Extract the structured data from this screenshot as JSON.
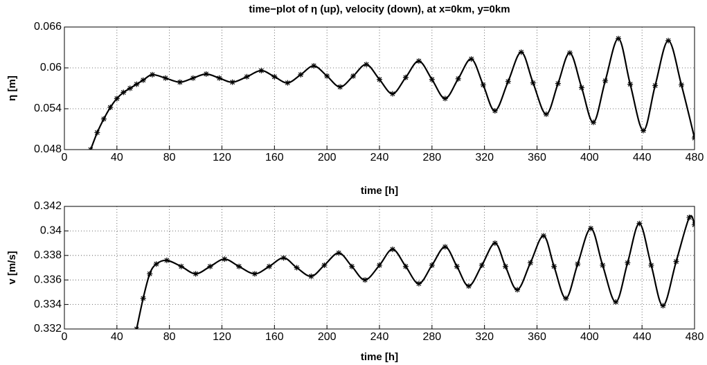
{
  "chart_data": [
    {
      "type": "line",
      "title": "time−plot of η (up), velocity (down), at x=0km, y=0km",
      "xlabel": "time [h]",
      "ylabel": "η [m]",
      "color": "#000000",
      "marker": "*",
      "grid": true,
      "xlim": [
        0,
        480
      ],
      "xticks": [
        0,
        40,
        80,
        120,
        160,
        200,
        240,
        280,
        320,
        360,
        400,
        440,
        480
      ],
      "ylim": [
        0.048,
        0.066
      ],
      "yticks": [
        0.048,
        0.054,
        0.06,
        0.066
      ],
      "x": [
        20,
        25,
        30,
        35,
        40,
        45,
        50,
        55,
        60,
        67,
        77,
        88,
        98,
        108,
        118,
        128,
        139,
        150,
        160,
        170,
        180,
        190,
        200,
        210,
        220,
        230,
        240,
        250,
        260,
        270,
        280,
        290,
        300,
        310,
        319,
        328,
        338,
        348,
        357,
        367,
        376,
        385,
        394,
        403,
        412,
        422,
        431,
        441,
        450,
        460,
        470,
        480
      ],
      "values": [
        0.048,
        0.0505,
        0.0525,
        0.0542,
        0.0555,
        0.0564,
        0.057,
        0.0576,
        0.0582,
        0.059,
        0.0585,
        0.0579,
        0.0585,
        0.0591,
        0.0585,
        0.0579,
        0.0587,
        0.0596,
        0.0587,
        0.0578,
        0.059,
        0.0603,
        0.0588,
        0.0572,
        0.0588,
        0.0605,
        0.0583,
        0.0562,
        0.0586,
        0.061,
        0.0583,
        0.0555,
        0.0584,
        0.0613,
        0.0575,
        0.0537,
        0.058,
        0.0623,
        0.0578,
        0.0532,
        0.0577,
        0.0622,
        0.0571,
        0.052,
        0.0581,
        0.0643,
        0.0576,
        0.0508,
        0.0574,
        0.064,
        0.0575,
        0.0497
      ]
    },
    {
      "type": "line",
      "xlabel": "time [h]",
      "ylabel": "v [m/s]",
      "color": "#000000",
      "marker": "*",
      "grid": true,
      "xlim": [
        0,
        480
      ],
      "xticks": [
        0,
        40,
        80,
        120,
        160,
        200,
        240,
        280,
        320,
        360,
        400,
        440,
        480
      ],
      "ylim": [
        0.332,
        0.342
      ],
      "yticks": [
        0.332,
        0.334,
        0.336,
        0.338,
        0.34,
        0.342
      ],
      "x": [
        55,
        60,
        65,
        70,
        78,
        89,
        100,
        111,
        122,
        133,
        145,
        156,
        167,
        177,
        188,
        198,
        209,
        219,
        229,
        240,
        250,
        260,
        270,
        280,
        290,
        299,
        308,
        318,
        328,
        336,
        345,
        355,
        365,
        373,
        382,
        391,
        401,
        410,
        420,
        429,
        438,
        447,
        456,
        466,
        476,
        480
      ],
      "values": [
        0.332,
        0.3345,
        0.3365,
        0.3373,
        0.3376,
        0.3371,
        0.3365,
        0.3371,
        0.3377,
        0.3371,
        0.3365,
        0.3371,
        0.3378,
        0.337,
        0.3363,
        0.3372,
        0.3382,
        0.3371,
        0.336,
        0.3372,
        0.3385,
        0.3371,
        0.3357,
        0.3372,
        0.3387,
        0.3371,
        0.3355,
        0.3372,
        0.339,
        0.3371,
        0.3352,
        0.3374,
        0.3396,
        0.3371,
        0.3345,
        0.3373,
        0.3402,
        0.3372,
        0.3342,
        0.3374,
        0.3406,
        0.3372,
        0.3339,
        0.3375,
        0.3411,
        0.3405
      ]
    }
  ]
}
